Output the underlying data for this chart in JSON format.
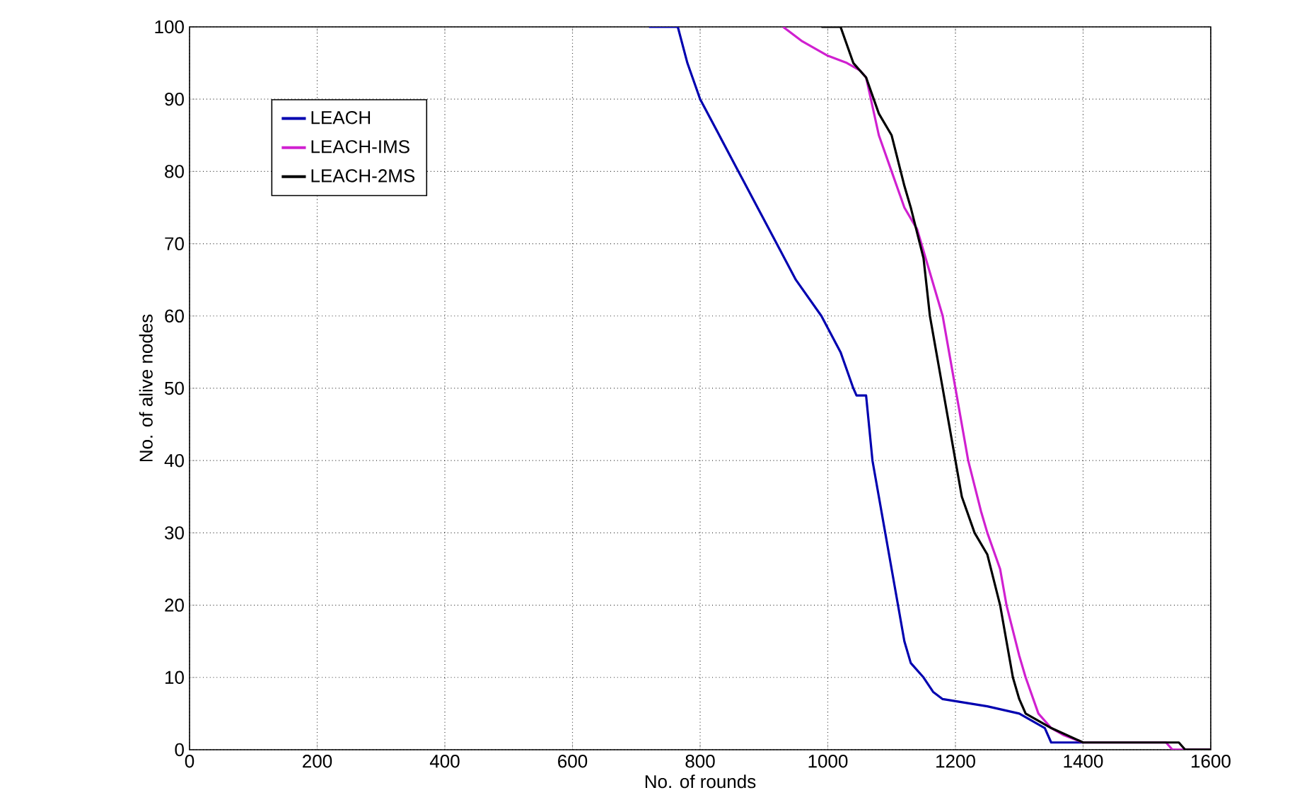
{
  "chart_data": {
    "type": "line",
    "xlabel": "No. of rounds",
    "ylabel": "No. of alive nodes",
    "xlim": [
      0,
      1600
    ],
    "xticks": [
      0,
      200,
      400,
      600,
      800,
      1000,
      1200,
      1400,
      1600
    ],
    "ylim": [
      0,
      100
    ],
    "yticks": [
      0,
      10,
      20,
      30,
      40,
      50,
      60,
      70,
      80,
      90,
      100
    ],
    "grid": true,
    "legend": "top left",
    "series": [
      {
        "name": "LEACH",
        "color": "#0000b0",
        "x": [
          720,
          765,
          780,
          800,
          830,
          860,
          890,
          920,
          950,
          990,
          1020,
          1040,
          1045,
          1060,
          1070,
          1080,
          1090,
          1100,
          1110,
          1120,
          1130,
          1150,
          1165,
          1180,
          1250,
          1300,
          1320,
          1340,
          1350,
          1400
        ],
        "values": [
          100,
          100,
          95,
          90,
          85,
          80,
          75,
          70,
          65,
          60,
          55,
          50,
          49,
          49,
          40,
          35,
          30,
          25,
          20,
          15,
          12,
          10,
          8,
          7,
          6,
          5,
          4,
          3,
          1,
          1
        ]
      },
      {
        "name": "LEACH-IMS",
        "color": "#d020d0",
        "x": [
          930,
          960,
          980,
          1000,
          1030,
          1050,
          1060,
          1080,
          1100,
          1120,
          1140,
          1160,
          1180,
          1200,
          1220,
          1240,
          1250,
          1270,
          1280,
          1300,
          1310,
          1330,
          1350,
          1370,
          1400,
          1530,
          1540,
          1600
        ],
        "values": [
          100,
          98,
          97,
          96,
          95,
          94,
          93,
          85,
          80,
          75,
          72,
          66,
          60,
          50,
          40,
          33,
          30,
          25,
          20,
          13,
          10,
          5,
          3,
          2,
          1,
          1,
          0,
          0
        ]
      },
      {
        "name": "LEACH-2MS",
        "color": "#000000",
        "x": [
          990,
          1020,
          1040,
          1060,
          1080,
          1100,
          1120,
          1130,
          1150,
          1160,
          1170,
          1180,
          1200,
          1210,
          1230,
          1250,
          1270,
          1280,
          1290,
          1300,
          1310,
          1350,
          1400,
          1550,
          1560,
          1600
        ],
        "values": [
          100,
          100,
          95,
          93,
          88,
          85,
          78,
          75,
          68,
          60,
          55,
          50,
          40,
          35,
          30,
          27,
          20,
          15,
          10,
          7,
          5,
          3,
          1,
          1,
          0,
          0
        ]
      }
    ]
  }
}
